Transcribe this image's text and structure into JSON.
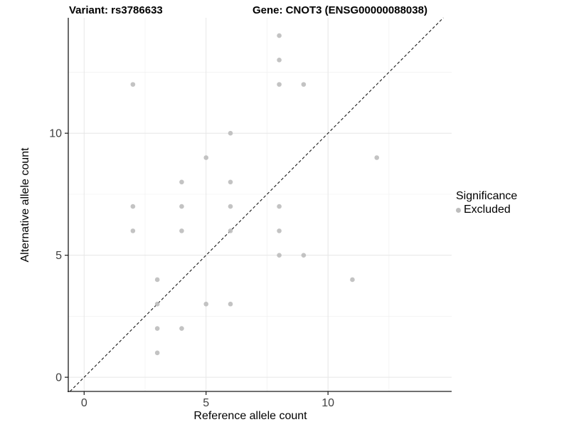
{
  "title": {
    "variant": "Variant: rs3786633",
    "gene": "Gene: CNOT3 (ENSG00000088038)"
  },
  "chart_data": {
    "type": "scatter",
    "title": "Variant: rs3786633   Gene: CNOT3 (ENSG00000088038)",
    "xlabel": "Reference allele count",
    "ylabel": "Alternative allele count",
    "x_ticks": [
      0,
      5,
      10
    ],
    "y_ticks": [
      0,
      5,
      10
    ],
    "x_minor_gridlines": [
      2.5,
      7.5,
      12.5
    ],
    "y_minor_gridlines": [
      2.5,
      7.5,
      12.5
    ],
    "xlim": [
      -0.65,
      15.07
    ],
    "ylim": [
      -0.58,
      14.73
    ],
    "grid": "on",
    "identity_line": {
      "equation": "y = x",
      "style": "dashed",
      "color": "#1a1a1a"
    },
    "series": [
      {
        "name": "Excluded",
        "color": "#bdbdbd",
        "points": [
          [
            2,
            12
          ],
          [
            2,
            7
          ],
          [
            2,
            6
          ],
          [
            3,
            4
          ],
          [
            3,
            3
          ],
          [
            3,
            2
          ],
          [
            3,
            1
          ],
          [
            4,
            8
          ],
          [
            4,
            7
          ],
          [
            4,
            6
          ],
          [
            4,
            2
          ],
          [
            5,
            9
          ],
          [
            5,
            3
          ],
          [
            6,
            10
          ],
          [
            6,
            8
          ],
          [
            6,
            7
          ],
          [
            6,
            6
          ],
          [
            6,
            3
          ],
          [
            8,
            14
          ],
          [
            8,
            13
          ],
          [
            8,
            12
          ],
          [
            8,
            7
          ],
          [
            8,
            6
          ],
          [
            8,
            5
          ],
          [
            9,
            12
          ],
          [
            9,
            5
          ],
          [
            11,
            4
          ],
          [
            12,
            9
          ]
        ]
      }
    ],
    "legend": {
      "title": "Significance",
      "position": "right",
      "items": [
        {
          "label": "Excluded",
          "color": "#bdbdbd"
        }
      ]
    }
  },
  "colors": {
    "background": "#ffffff",
    "grid_major": "#e6e6e6",
    "grid_minor": "#f0f0f0",
    "axis_line": "#1a1a1a",
    "tick_label": "#404040",
    "point": "#bdbdbd"
  }
}
